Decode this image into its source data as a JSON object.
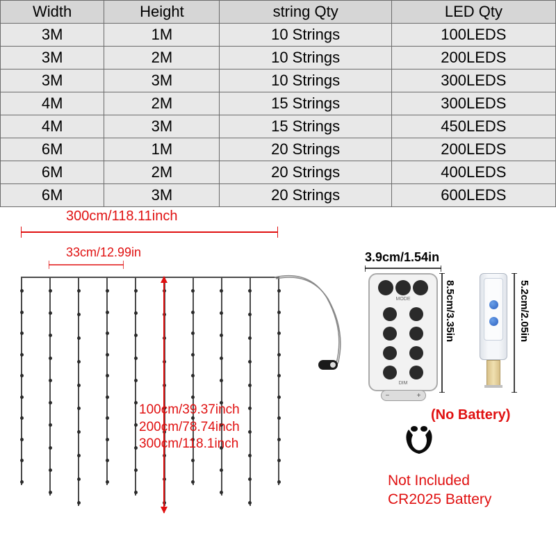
{
  "table": {
    "columns": [
      "Width",
      "Height",
      "string Qty",
      "LED Qty"
    ],
    "rows": [
      [
        "3M",
        "1M",
        "10 Strings",
        "100LEDS"
      ],
      [
        "3M",
        "2M",
        "10 Strings",
        "200LEDS"
      ],
      [
        "3M",
        "3M",
        "10 Strings",
        "300LEDS"
      ],
      [
        "4M",
        "2M",
        "15 Strings",
        "300LEDS"
      ],
      [
        "4M",
        "3M",
        "15 Strings",
        "450LEDS"
      ],
      [
        "6M",
        "1M",
        "20 Strings",
        "200LEDS"
      ],
      [
        "6M",
        "2M",
        "20 Strings",
        "400LEDS"
      ],
      [
        "6M",
        "3M",
        "20 Strings",
        "600LEDS"
      ]
    ],
    "header_bg": "#d6d6d6",
    "cell_bg": "#e8e8e8",
    "border_color": "#6b6b6b",
    "fontsize": 22
  },
  "diagram": {
    "width_label": "300cm/118.11inch",
    "spacing_label": "33cm/12.99in",
    "height_labels": [
      "100cm/39.37inch",
      "200cm/78.74inch",
      "300cm/118.1inch"
    ],
    "num_strings": 10,
    "leds_per_string": 10,
    "accent_color": "#e01010",
    "string_color": "#4a4a4a"
  },
  "remote": {
    "width_label": "3.9cm/1.54in",
    "height_label": "8.5cm/3.35in",
    "mode_label": "MODE",
    "dim_label": "DIM"
  },
  "usb": {
    "height_label": "5.2cm/2.05in",
    "body_color": "#f5f7fa",
    "button_color": "#2b5fc0"
  },
  "notes": {
    "no_battery": "(No Battery)",
    "not_included_line1": "Not Included",
    "not_included_line2": "CR2025 Battery"
  }
}
